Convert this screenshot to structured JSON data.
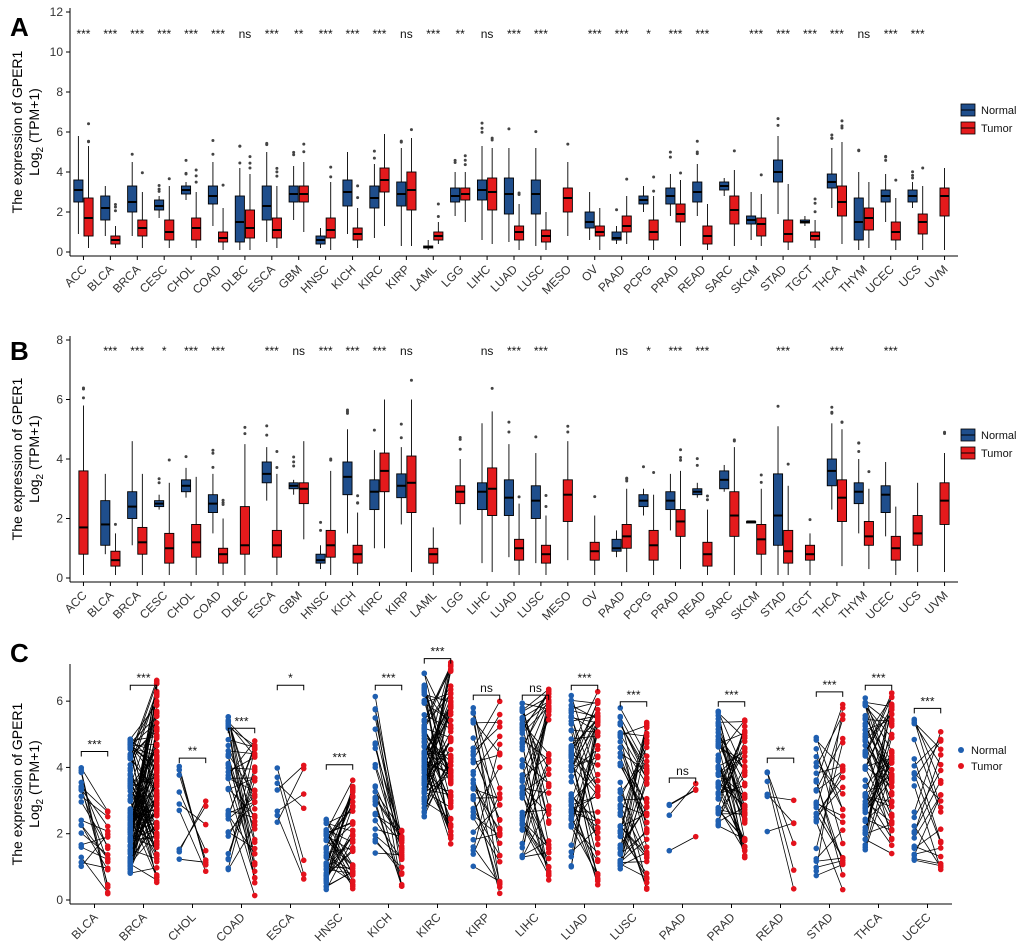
{
  "colors": {
    "normal": "#1f4e8c",
    "tumor": "#e41a1c",
    "normal_dot": "#1f5fb0",
    "tumor_dot": "#e3121c"
  },
  "chart_data": [
    {
      "panel": "A",
      "type": "box",
      "ylabel_line1": "The expression of GPER1",
      "ylabel_line2": "Log",
      "ylabel_sub": "2",
      "ylabel_tail": " (TPM+1)",
      "ylim": [
        0,
        12
      ],
      "yticks": [
        0,
        2,
        4,
        6,
        8,
        10,
        12
      ],
      "legend": [
        "Normal",
        "Tumor"
      ],
      "legend_position": "right",
      "categories": [
        "ACC",
        "BLCA",
        "BRCA",
        "CESC",
        "CHOL",
        "COAD",
        "DLBC",
        "ESCA",
        "GBM",
        "HNSC",
        "KICH",
        "KIRC",
        "KIRP",
        "LAML",
        "LGG",
        "LIHC",
        "LUAD",
        "LUSC",
        "MESO",
        "OV",
        "PAAD",
        "PCPG",
        "PRAD",
        "READ",
        "SARC",
        "SKCM",
        "STAD",
        "TGCT",
        "THCA",
        "THYM",
        "UCEC",
        "UCS",
        "UVM"
      ],
      "significance": [
        "***",
        "***",
        "***",
        "***",
        "***",
        "***",
        "ns",
        "***",
        "**",
        "***",
        "***",
        "***",
        "ns",
        "***",
        "**",
        "ns",
        "***",
        "***",
        "",
        "***",
        "***",
        "*",
        "***",
        "***",
        "",
        "***",
        "***",
        "***",
        "***",
        "ns",
        "***",
        "***",
        ""
      ],
      "normal": [
        [
          0.9,
          2.5,
          3.1,
          3.6,
          5.8
        ],
        [
          0.8,
          1.6,
          2.2,
          2.8,
          3.3
        ],
        [
          0.8,
          2.0,
          2.5,
          3.3,
          4.5
        ],
        [
          1.7,
          2.1,
          2.3,
          2.6,
          2.8
        ],
        [
          2.6,
          2.9,
          3.1,
          3.3,
          3.5
        ],
        [
          1.3,
          2.4,
          2.8,
          3.3,
          4.5
        ],
        [
          0.1,
          0.5,
          1.5,
          2.8,
          4.2
        ],
        [
          0.5,
          1.6,
          2.3,
          3.3,
          5.0
        ],
        [
          1.6,
          2.5,
          2.9,
          3.3,
          4.3
        ],
        [
          0.2,
          0.4,
          0.6,
          0.8,
          1.2
        ],
        [
          0.9,
          2.3,
          3.0,
          3.6,
          5.0
        ],
        [
          0.7,
          2.2,
          2.7,
          3.3,
          4.4
        ],
        [
          0.3,
          2.3,
          2.9,
          3.5,
          5.2
        ],
        [
          0.1,
          0.2,
          0.25,
          0.3,
          0.6
        ],
        [
          1.8,
          2.5,
          2.8,
          3.2,
          4.0
        ],
        [
          0.6,
          2.6,
          3.1,
          3.6,
          5.3
        ],
        [
          0.5,
          1.9,
          2.9,
          3.7,
          5.2
        ],
        [
          0.3,
          1.9,
          2.9,
          3.6,
          5.2
        ],
        null,
        [
          0.6,
          1.2,
          1.5,
          2.0,
          3.0
        ],
        [
          0.4,
          0.6,
          0.7,
          1.0,
          1.3
        ],
        [
          2.0,
          2.4,
          2.6,
          2.8,
          3.3
        ],
        [
          1.8,
          2.4,
          2.8,
          3.2,
          3.9
        ],
        [
          1.8,
          2.5,
          3.0,
          3.5,
          4.4
        ],
        [
          2.8,
          3.1,
          3.3,
          3.5,
          3.7
        ],
        [
          0.6,
          1.4,
          1.6,
          1.8,
          3.0
        ],
        [
          1.9,
          3.5,
          4.0,
          4.6,
          5.8
        ],
        [
          1.3,
          1.45,
          1.5,
          1.6,
          1.8
        ],
        [
          2.2,
          3.2,
          3.5,
          3.9,
          5.2
        ],
        [
          0.1,
          0.6,
          1.5,
          2.7,
          4.0
        ],
        [
          1.5,
          2.5,
          2.8,
          3.1,
          3.9
        ],
        [
          2.2,
          2.5,
          2.8,
          3.1,
          3.5
        ],
        null
      ],
      "tumor": [
        [
          0.2,
          0.8,
          1.7,
          2.7,
          5.3
        ],
        [
          0.2,
          0.4,
          0.6,
          0.8,
          1.3
        ],
        [
          0.2,
          0.8,
          1.2,
          1.6,
          3.0
        ],
        [
          0.2,
          0.6,
          1.0,
          1.6,
          3.3
        ],
        [
          0.2,
          0.6,
          1.2,
          1.7,
          3.0
        ],
        [
          0.1,
          0.5,
          0.7,
          1.0,
          2.2
        ],
        [
          0.1,
          0.7,
          1.2,
          2.1,
          3.9
        ],
        [
          0.2,
          0.7,
          1.1,
          1.7,
          3.3
        ],
        [
          1.0,
          2.5,
          2.9,
          3.3,
          4.5
        ],
        [
          0.1,
          0.7,
          1.1,
          1.7,
          3.5
        ],
        [
          0.2,
          0.6,
          0.9,
          1.2,
          2.2
        ],
        [
          1.3,
          3.0,
          3.6,
          4.2,
          5.9
        ],
        [
          0.3,
          2.1,
          3.1,
          4.0,
          5.7
        ],
        [
          0.4,
          0.6,
          0.8,
          1.0,
          1.5
        ],
        [
          1.5,
          2.6,
          2.9,
          3.2,
          4.0
        ],
        [
          0.4,
          2.1,
          3.0,
          3.7,
          5.2
        ],
        [
          0.1,
          0.6,
          1.0,
          1.3,
          2.4
        ],
        [
          0.1,
          0.5,
          0.8,
          1.1,
          2.0
        ],
        [
          0.8,
          2.0,
          2.7,
          3.2,
          4.5
        ],
        [
          0.1,
          0.8,
          1.0,
          1.3,
          2.2
        ],
        [
          0.4,
          1.0,
          1.3,
          1.8,
          2.8
        ],
        [
          0.1,
          0.6,
          1.0,
          1.6,
          2.8
        ],
        [
          0.3,
          1.5,
          1.9,
          2.4,
          3.6
        ],
        [
          0.1,
          0.4,
          0.8,
          1.3,
          2.4
        ],
        [
          0.3,
          1.4,
          2.1,
          2.8,
          4.1
        ],
        [
          0.3,
          0.8,
          1.4,
          1.7,
          2.9
        ],
        [
          0.1,
          0.5,
          0.9,
          1.6,
          3.4
        ],
        [
          0.2,
          0.6,
          0.8,
          1.0,
          1.6
        ],
        [
          0.4,
          1.8,
          2.5,
          3.3,
          5.5
        ],
        [
          0.2,
          1.1,
          1.7,
          2.2,
          3.5
        ],
        [
          0.1,
          0.6,
          1.0,
          1.5,
          2.7
        ],
        [
          0.1,
          0.9,
          1.5,
          1.9,
          3.3
        ],
        [
          0.1,
          1.8,
          2.8,
          3.2,
          4.2
        ]
      ]
    },
    {
      "panel": "B",
      "type": "box",
      "ylabel_line1": "The expression of GPER1",
      "ylabel_line2": "Log",
      "ylabel_sub": "2",
      "ylabel_tail": " (TPM+1)",
      "ylim": [
        0,
        8
      ],
      "yticks": [
        0,
        2,
        4,
        6,
        8
      ],
      "legend": [
        "Normal",
        "Tumor"
      ],
      "legend_position": "right",
      "categories": [
        "ACC",
        "BLCA",
        "BRCA",
        "CESC",
        "CHOL",
        "COAD",
        "DLBC",
        "ESCA",
        "GBM",
        "HNSC",
        "KICH",
        "KIRC",
        "KIRP",
        "LAML",
        "LGG",
        "LIHC",
        "LUAD",
        "LUSC",
        "MESO",
        "OV",
        "PAAD",
        "PCPG",
        "PRAD",
        "READ",
        "SARC",
        "SKCM",
        "STAD",
        "TGCT",
        "THCA",
        "THYM",
        "UCEC",
        "UCS",
        "UVM"
      ],
      "significance": [
        "",
        "***",
        "***",
        "*",
        "***",
        "***",
        "",
        "***",
        "ns",
        "***",
        "***",
        "***",
        "ns",
        "",
        "",
        "ns",
        "***",
        "***",
        "",
        "",
        "ns",
        "*",
        "***",
        "***",
        "",
        "",
        "***",
        "",
        "***",
        "",
        "***",
        "",
        ""
      ],
      "normal": [
        null,
        [
          0.8,
          1.1,
          1.8,
          2.6,
          3.5
        ],
        [
          1.1,
          2.0,
          2.4,
          2.9,
          4.6
        ],
        [
          2.3,
          2.4,
          2.5,
          2.6,
          2.8
        ],
        [
          2.7,
          2.9,
          3.1,
          3.3,
          3.7
        ],
        [
          1.5,
          2.2,
          2.5,
          2.8,
          3.5
        ],
        null,
        [
          2.6,
          3.2,
          3.5,
          3.9,
          4.4
        ],
        [
          2.8,
          3.0,
          3.1,
          3.2,
          3.3
        ],
        [
          0.3,
          0.5,
          0.6,
          0.8,
          1.1
        ],
        [
          1.5,
          2.8,
          3.4,
          3.9,
          5.0
        ],
        [
          1.0,
          2.3,
          2.9,
          3.3,
          4.3
        ],
        [
          1.8,
          2.7,
          3.1,
          3.5,
          4.4
        ],
        null,
        null,
        [
          0.5,
          2.3,
          2.9,
          3.2,
          5.2
        ],
        [
          0.7,
          2.1,
          2.7,
          3.3,
          4.5
        ],
        [
          0.5,
          2.0,
          2.6,
          3.1,
          4.2
        ],
        null,
        null,
        [
          0.7,
          0.9,
          1.0,
          1.3,
          1.6
        ],
        [
          2.1,
          2.4,
          2.6,
          2.8,
          3.0
        ],
        [
          1.6,
          2.3,
          2.6,
          2.9,
          3.5
        ],
        [
          2.7,
          2.8,
          2.9,
          3.0,
          3.2
        ],
        [
          2.9,
          3.0,
          3.3,
          3.6,
          3.8
        ],
        [
          1.9,
          1.9,
          1.9,
          1.9,
          1.9
        ],
        [
          0.1,
          1.1,
          2.1,
          3.5,
          5.1
        ],
        null,
        [
          2.3,
          3.1,
          3.6,
          4.0,
          5.2
        ],
        [
          1.5,
          2.5,
          2.9,
          3.2,
          4.0
        ],
        [
          1.4,
          2.2,
          2.8,
          3.1,
          3.9
        ],
        null,
        null
      ],
      "tumor": [
        [
          0.1,
          0.8,
          1.7,
          3.6,
          5.8
        ],
        [
          0.1,
          0.4,
          0.6,
          0.9,
          1.5
        ],
        [
          0.1,
          0.8,
          1.2,
          1.7,
          3.5
        ],
        [
          0.1,
          0.5,
          1.0,
          1.5,
          3.2
        ],
        [
          0.1,
          0.7,
          1.2,
          1.8,
          3.4
        ],
        [
          0.1,
          0.5,
          0.8,
          1.0,
          2.0
        ],
        [
          0.1,
          0.8,
          1.1,
          2.4,
          4.5
        ],
        [
          0.1,
          0.7,
          1.1,
          1.6,
          3.5
        ],
        [
          1.3,
          2.5,
          3.0,
          3.2,
          4.6
        ],
        [
          0.1,
          0.7,
          1.1,
          1.6,
          3.6
        ],
        [
          0.1,
          0.5,
          0.8,
          1.1,
          2.2
        ],
        [
          1.0,
          2.9,
          3.6,
          4.2,
          6.0
        ],
        [
          0.2,
          2.2,
          3.2,
          4.1,
          6.0
        ],
        [
          0.1,
          0.5,
          0.8,
          1.0,
          1.7
        ],
        [
          1.8,
          2.5,
          2.9,
          3.1,
          4.0
        ],
        [
          0.2,
          2.1,
          3.0,
          3.7,
          5.6
        ],
        [
          0.1,
          0.6,
          1.0,
          1.3,
          2.5
        ],
        [
          0.1,
          0.5,
          0.8,
          1.1,
          2.1
        ],
        [
          0.6,
          1.9,
          2.8,
          3.3,
          4.6
        ],
        [
          0.1,
          0.6,
          0.9,
          1.2,
          2.1
        ],
        [
          0.2,
          1.0,
          1.4,
          1.8,
          3.0
        ],
        [
          0.1,
          0.6,
          1.1,
          1.6,
          2.8
        ],
        [
          0.3,
          1.4,
          1.9,
          2.3,
          3.6
        ],
        [
          0.1,
          0.4,
          0.8,
          1.2,
          2.3
        ],
        [
          0.1,
          1.4,
          2.1,
          2.9,
          4.4
        ],
        [
          0.1,
          0.8,
          1.3,
          1.8,
          3.0
        ],
        [
          0.1,
          0.5,
          0.9,
          1.6,
          3.1
        ],
        [
          0.1,
          0.6,
          0.8,
          1.1,
          1.5
        ],
        [
          0.4,
          1.9,
          2.7,
          3.3,
          5.0
        ],
        [
          0.3,
          1.1,
          1.4,
          1.9,
          3.0
        ],
        [
          0.1,
          0.6,
          1.0,
          1.4,
          2.4
        ],
        [
          0.2,
          1.1,
          1.5,
          2.1,
          3.2
        ],
        [
          0.2,
          1.8,
          2.6,
          3.2,
          4.2
        ]
      ]
    },
    {
      "panel": "C",
      "type": "paired",
      "ylabel_line1": "The expression of GPER1",
      "ylabel_line2": "Log",
      "ylabel_sub": "2",
      "ylabel_tail": " (TPM+1)",
      "ylim": [
        0,
        7
      ],
      "yticks": [
        0,
        2,
        4,
        6
      ],
      "legend": [
        "Normal",
        "Tumor"
      ],
      "legend_position": "right",
      "categories": [
        "BLCA",
        "BRCA",
        "CHOL",
        "COAD",
        "ESCA",
        "HNSC",
        "KICH",
        "KIRC",
        "KIRP",
        "LIHC",
        "LUAD",
        "LUSC",
        "PAAD",
        "PRAD",
        "READ",
        "STAD",
        "THCA",
        "UCEC"
      ],
      "significance": [
        "***",
        "***",
        "**",
        "***",
        "*",
        "***",
        "***",
        "***",
        "ns",
        "ns",
        "***",
        "***",
        "ns",
        "***",
        "**",
        "***",
        "***",
        "***"
      ],
      "sig_level": [
        4.3,
        6.3,
        4.1,
        5.0,
        6.3,
        3.9,
        6.3,
        7.1,
        6.0,
        6.0,
        6.3,
        5.8,
        3.5,
        5.8,
        4.1,
        6.1,
        6.3,
        5.6
      ],
      "n_pairs": [
        19,
        110,
        9,
        41,
        7,
        44,
        25,
        72,
        32,
        50,
        57,
        49,
        4,
        52,
        6,
        27,
        58,
        23
      ],
      "normal_range": [
        [
          0.9,
          4.2
        ],
        [
          0.8,
          4.9
        ],
        [
          0.9,
          4.3
        ],
        [
          0.9,
          5.6
        ],
        [
          1.4,
          6.4
        ],
        [
          0.3,
          2.5
        ],
        [
          0.7,
          6.3
        ],
        [
          2.5,
          6.9
        ],
        [
          0.3,
          6.0
        ],
        [
          1.2,
          6.0
        ],
        [
          0.9,
          6.3
        ],
        [
          0.8,
          5.8
        ],
        [
          1.4,
          3.4
        ],
        [
          2.2,
          5.8
        ],
        [
          2.0,
          4.0
        ],
        [
          0.7,
          4.9
        ],
        [
          1.5,
          6.2
        ],
        [
          1.1,
          5.6
        ]
      ],
      "tumor_range": [
        [
          0.1,
          2.7
        ],
        [
          0.3,
          6.8
        ],
        [
          0.4,
          3.2
        ],
        [
          0.1,
          5.0
        ],
        [
          0.6,
          5.0
        ],
        [
          0.3,
          3.8
        ],
        [
          0.4,
          2.2
        ],
        [
          1.6,
          7.2
        ],
        [
          0.2,
          6.0
        ],
        [
          0.6,
          6.4
        ],
        [
          0.3,
          6.3
        ],
        [
          0.3,
          5.4
        ],
        [
          1.6,
          4.2
        ],
        [
          1.2,
          5.6
        ],
        [
          0.3,
          3.5
        ],
        [
          0.3,
          5.9
        ],
        [
          1.4,
          6.4
        ],
        [
          0.7,
          5.1
        ]
      ]
    }
  ]
}
